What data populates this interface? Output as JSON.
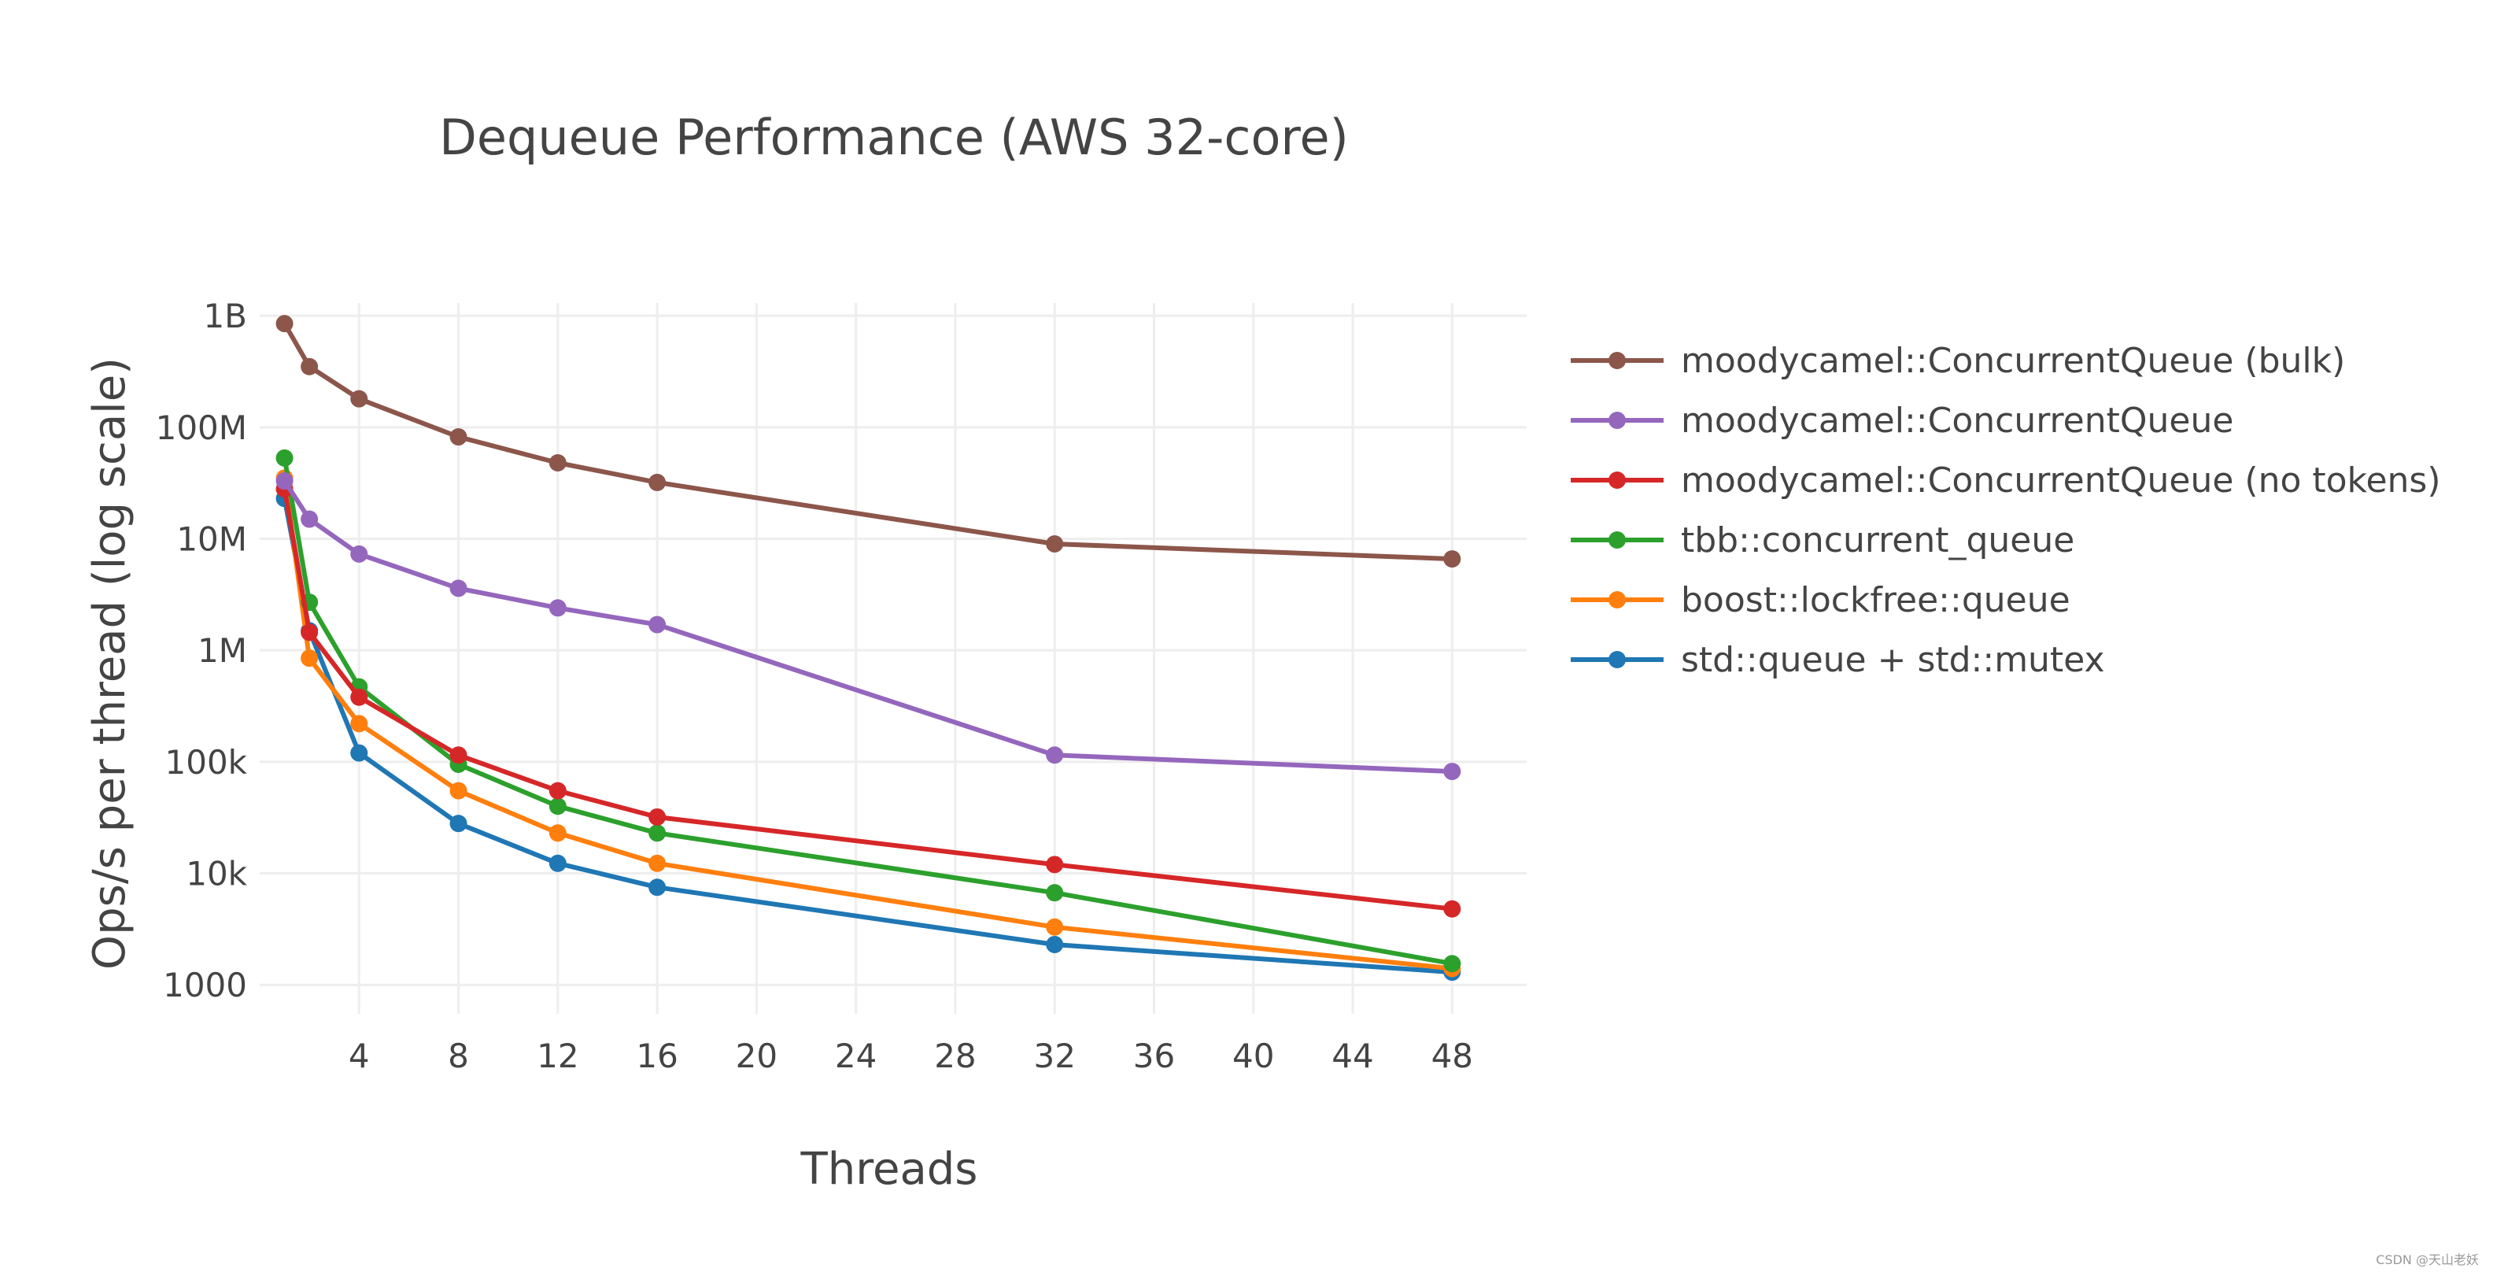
{
  "chart_data": {
    "type": "line",
    "title": "Dequeue Performance (AWS 32-core)",
    "xlabel": "Threads",
    "ylabel": "Ops/s per thread (log scale)",
    "yscale": "log",
    "xlim": [
      0,
      51
    ],
    "ylim": [
      550,
      1300000000
    ],
    "x_ticks": [
      4,
      8,
      12,
      16,
      20,
      24,
      28,
      32,
      36,
      40,
      44,
      48
    ],
    "y_ticks": [
      {
        "value": 1000,
        "label": "1000"
      },
      {
        "value": 10000,
        "label": "10k"
      },
      {
        "value": 100000,
        "label": "100k"
      },
      {
        "value": 1000000,
        "label": "1M"
      },
      {
        "value": 10000000,
        "label": "10M"
      },
      {
        "value": 100000000,
        "label": "100M"
      },
      {
        "value": 1000000000,
        "label": "1B"
      }
    ],
    "grid": true,
    "legend_position": "right",
    "series": [
      {
        "name": "moodycamel::ConcurrentQueue (bulk)",
        "color": "#8c564b",
        "x": [
          1,
          2,
          4,
          8,
          12,
          16,
          32,
          48
        ],
        "values": [
          850000000,
          350000000,
          180000000,
          82000000,
          48000000,
          32000000,
          9000000,
          6600000
        ]
      },
      {
        "name": "moodycamel::ConcurrentQueue",
        "color": "#9467bd",
        "x": [
          1,
          2,
          4,
          8,
          12,
          16,
          32,
          48
        ],
        "values": [
          33000000,
          15000000,
          7300000,
          3600000,
          2400000,
          1700000,
          115000,
          82000
        ]
      },
      {
        "name": "moodycamel::ConcurrentQueue (no tokens)",
        "color": "#d62728",
        "x": [
          1,
          2,
          4,
          8,
          12,
          16,
          32,
          48
        ],
        "values": [
          28000000,
          1450000,
          380000,
          115000,
          55000,
          32000,
          12000,
          4800
        ]
      },
      {
        "name": "tbb::concurrent_queue",
        "color": "#2ca02c",
        "x": [
          1,
          2,
          4,
          8,
          12,
          16,
          32,
          48
        ],
        "values": [
          53000000,
          2700000,
          470000,
          95000,
          40000,
          23000,
          6700,
          1550
        ]
      },
      {
        "name": "boost::lockfree::queue",
        "color": "#ff7f0e",
        "x": [
          1,
          2,
          4,
          8,
          12,
          16,
          32,
          48
        ],
        "values": [
          35000000,
          850000,
          220000,
          55000,
          23000,
          12300,
          3300,
          1400
        ]
      },
      {
        "name": "std::queue + std::mutex",
        "color": "#1f77b4",
        "x": [
          1,
          2,
          4,
          8,
          12,
          16,
          32,
          48
        ],
        "values": [
          23000000,
          1500000,
          120000,
          28000,
          12300,
          7500,
          2300,
          1300
        ]
      }
    ]
  },
  "watermark": "CSDN @天山老妖"
}
